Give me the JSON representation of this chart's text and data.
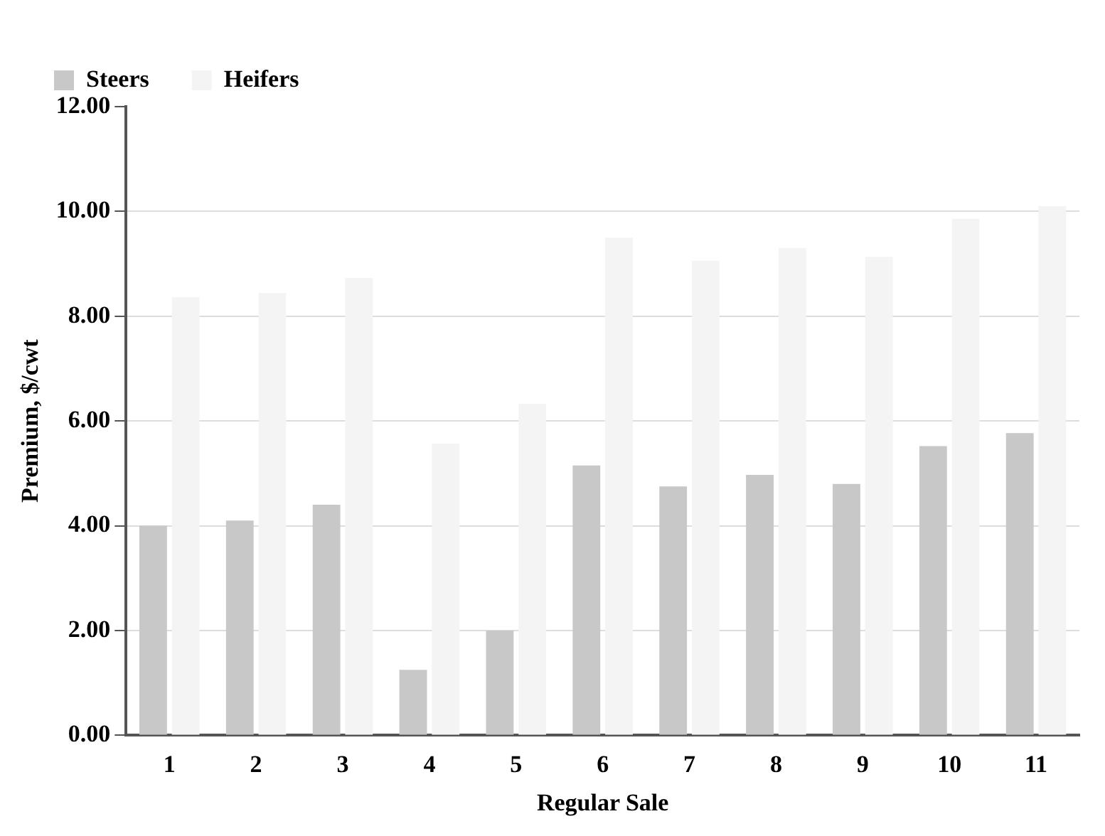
{
  "chart_data": {
    "type": "bar",
    "xlabel": "Regular Sale",
    "ylabel": "Premium, $/cwt",
    "categories": [
      "1",
      "2",
      "3",
      "4",
      "5",
      "6",
      "7",
      "8",
      "9",
      "10",
      "11"
    ],
    "series": [
      {
        "name": "Steers",
        "color": "#c8c8c8",
        "values": [
          4.0,
          4.1,
          4.4,
          1.25,
          2.0,
          5.15,
          4.75,
          4.97,
          4.8,
          5.52,
          5.77
        ]
      },
      {
        "name": "Heifers",
        "color": "#f4f4f4",
        "values": [
          8.36,
          8.44,
          8.73,
          5.57,
          6.33,
          9.5,
          9.06,
          9.3,
          9.13,
          9.86,
          10.1
        ]
      }
    ],
    "ylim": [
      0,
      12
    ],
    "yticks": [
      {
        "value": 0,
        "label": "0.00"
      },
      {
        "value": 2,
        "label": "2.00"
      },
      {
        "value": 4,
        "label": "4.00"
      },
      {
        "value": 6,
        "label": "6.00"
      },
      {
        "value": 8,
        "label": "8.00"
      },
      {
        "value": 10,
        "label": "10.00"
      },
      {
        "value": 12,
        "label": "12.00"
      }
    ],
    "grid": "y",
    "legend": "top left"
  }
}
